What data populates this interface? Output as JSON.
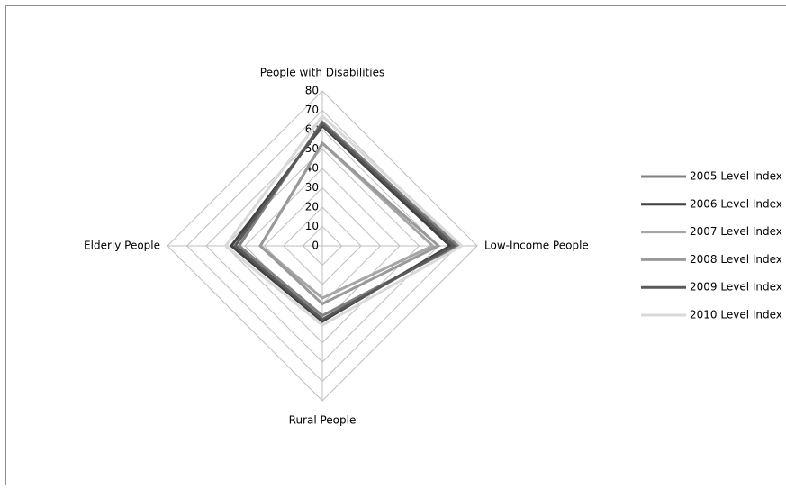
{
  "chart_data": {
    "type": "radar",
    "categories": [
      "People with Disabilities",
      "Low-Income People",
      "Rural People",
      "Elderly People"
    ],
    "series": [
      {
        "name": "2005 Level Index",
        "color": "#808080",
        "values": [
          64,
          70,
          36,
          43
        ]
      },
      {
        "name": "2006 Level Index",
        "color": "#404040",
        "values": [
          62,
          66,
          39,
          47
        ]
      },
      {
        "name": "2007 Level Index",
        "color": "#a6a6a6",
        "values": [
          53,
          57,
          27,
          32
        ]
      },
      {
        "name": "2008 Level Index",
        "color": "#999999",
        "values": [
          53,
          60,
          30,
          32
        ]
      },
      {
        "name": "2009 Level Index",
        "color": "#595959",
        "values": [
          63,
          68,
          38,
          45
        ]
      },
      {
        "name": "2010 Level Index",
        "color": "#d9d9d9",
        "values": [
          67,
          72,
          41,
          50
        ]
      }
    ],
    "ylim": [
      0,
      80
    ],
    "yticks": [
      0,
      10,
      20,
      30,
      40,
      50,
      60,
      70,
      80
    ],
    "grid": true,
    "legend": "right"
  }
}
